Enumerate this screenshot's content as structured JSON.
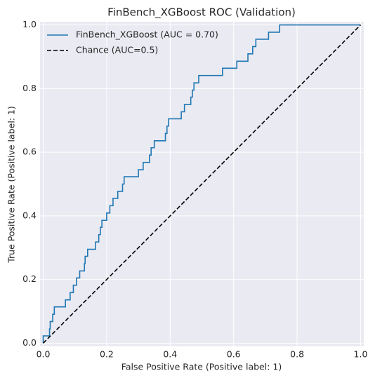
{
  "chart_data": {
    "type": "line",
    "title": "FinBench_XGBoost ROC (Validation)",
    "x_label": "False Positive Rate (Positive label: 1)",
    "y_label": "True Positive Rate (Positive label: 1)",
    "xlim": [
      -0.01,
      1.01
    ],
    "ylim": [
      -0.01,
      1.01
    ],
    "xticks": [
      {
        "value": 0,
        "label": "0.0"
      },
      0.2,
      0.4,
      0.6,
      0.8,
      {
        "value": 1,
        "label": "1.0"
      }
    ],
    "yticks": [
      {
        "value": 0,
        "label": "0.0"
      },
      0.2,
      0.4,
      0.6,
      0.8,
      {
        "value": 1,
        "label": "1.0"
      }
    ],
    "grid": true,
    "legend": "upper left",
    "series": [
      {
        "name": "FinBench_XGBoost (AUC = 0.70)",
        "color": "#1f77b4",
        "style": "solid",
        "x": [
          0,
          0,
          0.02,
          0.02,
          0.022,
          0.022,
          0.03,
          0.03,
          0.035,
          0.035,
          0.07,
          0.07,
          0.085,
          0.085,
          0.095,
          0.095,
          0.105,
          0.105,
          0.115,
          0.115,
          0.13,
          0.13,
          0.132,
          0.132,
          0.14,
          0.14,
          0.165,
          0.165,
          0.175,
          0.175,
          0.18,
          0.18,
          0.185,
          0.185,
          0.2,
          0.2,
          0.21,
          0.21,
          0.22,
          0.22,
          0.235,
          0.235,
          0.25,
          0.25,
          0.255,
          0.255,
          0.3,
          0.3,
          0.315,
          0.315,
          0.335,
          0.335,
          0.34,
          0.34,
          0.35,
          0.35,
          0.385,
          0.385,
          0.39,
          0.39,
          0.395,
          0.395,
          0.435,
          0.435,
          0.445,
          0.445,
          0.465,
          0.465,
          0.47,
          0.47,
          0.475,
          0.475,
          0.49,
          0.49,
          0.565,
          0.565,
          0.61,
          0.61,
          0.645,
          0.645,
          0.66,
          0.66,
          0.67,
          0.67,
          0.71,
          0.71,
          0.745,
          0.745,
          1.0
        ],
        "y": [
          0,
          0.023,
          0.023,
          0.045,
          0.045,
          0.068,
          0.068,
          0.091,
          0.091,
          0.114,
          0.114,
          0.136,
          0.136,
          0.159,
          0.159,
          0.182,
          0.182,
          0.205,
          0.205,
          0.227,
          0.227,
          0.25,
          0.25,
          0.273,
          0.273,
          0.295,
          0.295,
          0.318,
          0.318,
          0.341,
          0.341,
          0.364,
          0.364,
          0.386,
          0.386,
          0.409,
          0.409,
          0.432,
          0.432,
          0.455,
          0.455,
          0.477,
          0.477,
          0.5,
          0.5,
          0.523,
          0.523,
          0.545,
          0.545,
          0.568,
          0.568,
          0.591,
          0.591,
          0.614,
          0.614,
          0.636,
          0.636,
          0.659,
          0.659,
          0.682,
          0.682,
          0.705,
          0.705,
          0.727,
          0.727,
          0.75,
          0.75,
          0.773,
          0.773,
          0.795,
          0.795,
          0.818,
          0.818,
          0.841,
          0.841,
          0.864,
          0.864,
          0.886,
          0.886,
          0.909,
          0.909,
          0.932,
          0.932,
          0.955,
          0.955,
          0.977,
          0.977,
          1.0,
          1.0
        ]
      },
      {
        "name": "Chance (AUC=0.5)",
        "color": "#000000",
        "style": "dashed",
        "x": [
          0,
          1
        ],
        "y": [
          0,
          1
        ]
      }
    ]
  }
}
